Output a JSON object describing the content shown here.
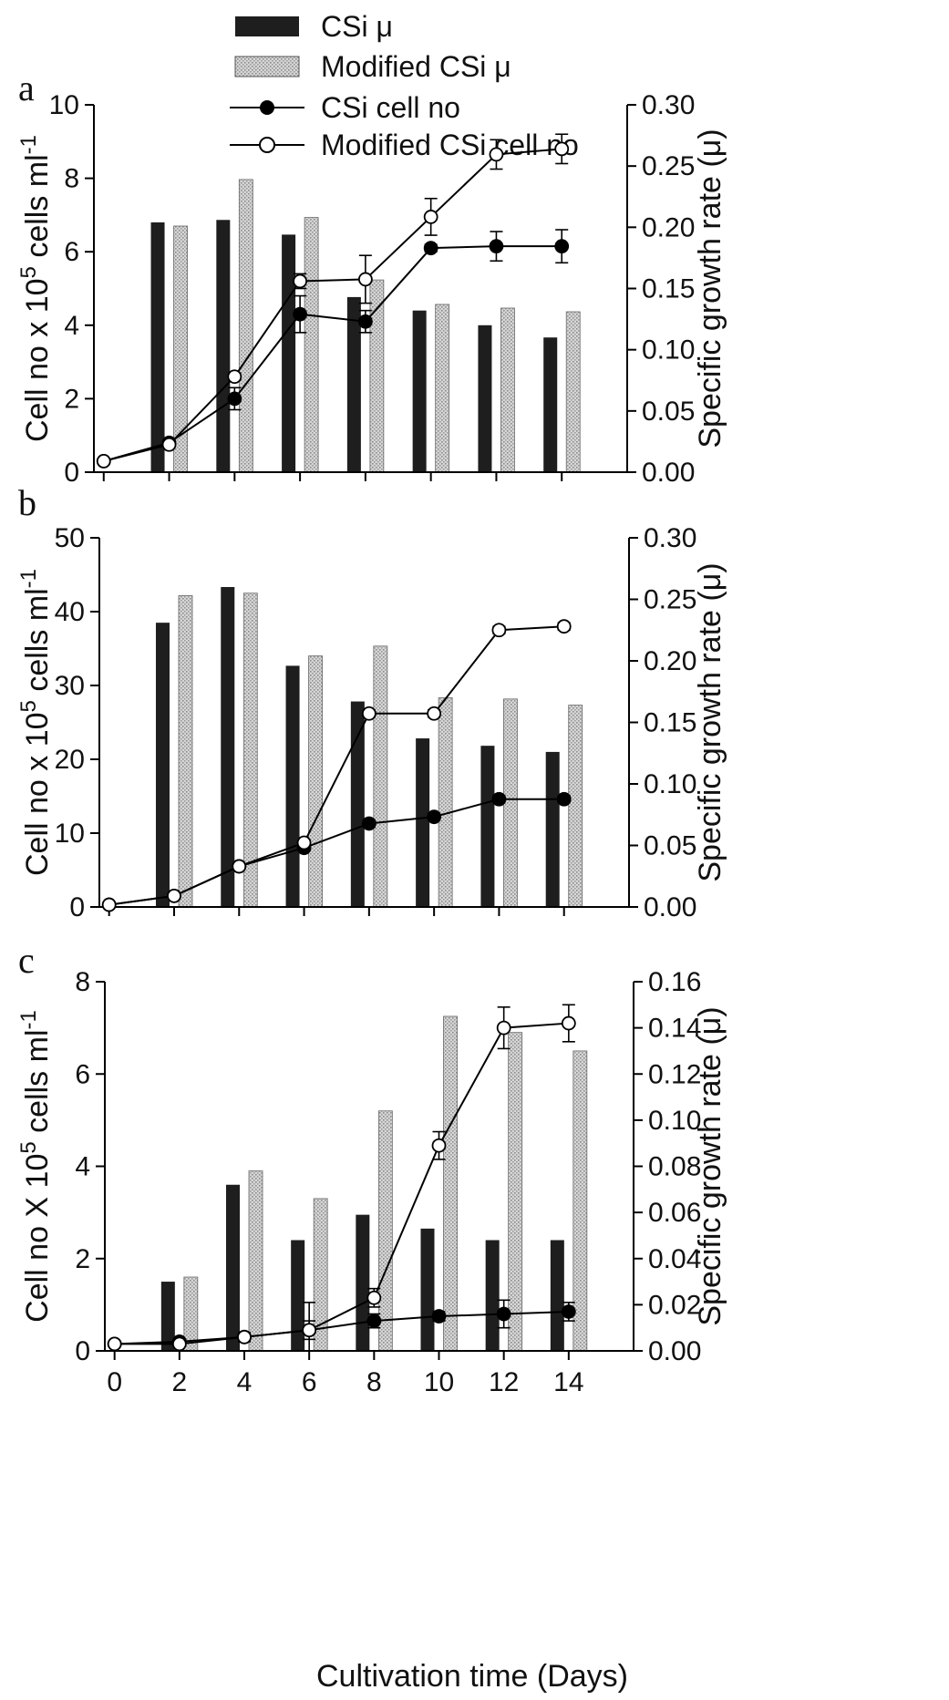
{
  "legend": {
    "items": [
      {
        "label": "CSi μ",
        "marker": "bar-dark"
      },
      {
        "label": "Modified CSi μ",
        "marker": "bar-light"
      },
      {
        "label": "CSi cell no",
        "marker": "line-filled"
      },
      {
        "label": "Modified CSi cell no",
        "marker": "line-open"
      }
    ],
    "placement": "top"
  },
  "colors": {
    "dark_bar": "#1e1e1e",
    "light_bar": "#c9c9c9",
    "line": "#000000"
  },
  "xlabel": "Cultivation time (Days)",
  "chart_data": [
    {
      "panel_label": "a",
      "type": "bar+line",
      "x_ticks": [
        0,
        2,
        4,
        6,
        8,
        10,
        12,
        14
      ],
      "xlim": [
        -0.3,
        16
      ],
      "ylabel_left": "Cell no x 10^5 cells ml^-1",
      "ylabel_right": "Specific growth rate (μ)",
      "ylim_left": [
        0,
        10
      ],
      "yticks_left": [
        0,
        2,
        4,
        6,
        8,
        10
      ],
      "ylim_right": [
        0,
        0.3
      ],
      "yticks_right": [
        "0.00",
        "0.05",
        "0.10",
        "0.15",
        "0.20",
        "0.25",
        "0.30"
      ],
      "bar_categories": [
        2,
        4,
        6,
        8,
        10,
        12,
        14
      ],
      "bar_series": [
        {
          "name": "CSi μ",
          "values": [
            0.204,
            0.206,
            0.194,
            0.143,
            0.132,
            0.12,
            0.11
          ]
        },
        {
          "name": "Modified CSi μ",
          "values": [
            0.201,
            0.239,
            0.208,
            0.157,
            0.137,
            0.134,
            0.131
          ]
        }
      ],
      "line_series": [
        {
          "name": "CSi cell no",
          "marker": "filled",
          "x": [
            0,
            2,
            4,
            6,
            8,
            10,
            12,
            14
          ],
          "y": [
            0.3,
            0.8,
            2.0,
            4.3,
            4.1,
            6.1,
            6.15,
            6.15
          ],
          "err": [
            0.05,
            0.05,
            0.3,
            0.5,
            0.3,
            0.1,
            0.4,
            0.45
          ]
        },
        {
          "name": "Modified CSi cell no",
          "marker": "open",
          "x": [
            0,
            2,
            4,
            6,
            8,
            10,
            12,
            14
          ],
          "y": [
            0.3,
            0.75,
            2.6,
            5.2,
            5.25,
            6.95,
            8.65,
            8.8
          ],
          "err": [
            0.05,
            0.05,
            0.1,
            0.2,
            0.65,
            0.5,
            0.4,
            0.4
          ]
        }
      ]
    },
    {
      "panel_label": "b",
      "type": "bar+line",
      "x_ticks": [
        0,
        2,
        4,
        6,
        8,
        10,
        12,
        14
      ],
      "xlim": [
        -0.3,
        16
      ],
      "ylabel_left": "Cell no x 10^5 cells ml^-1",
      "ylabel_right": "Specific growth rate (μ)",
      "ylim_left": [
        0,
        50
      ],
      "yticks_left": [
        0,
        10,
        20,
        30,
        40,
        50
      ],
      "ylim_right": [
        0,
        0.3
      ],
      "yticks_right": [
        "0.00",
        "0.05",
        "0.10",
        "0.15",
        "0.20",
        "0.25",
        "0.30"
      ],
      "bar_categories": [
        2,
        4,
        6,
        8,
        10,
        12,
        14
      ],
      "bar_series": [
        {
          "name": "CSi μ",
          "values": [
            0.231,
            0.26,
            0.196,
            0.167,
            0.137,
            0.131,
            0.126
          ]
        },
        {
          "name": "Modified CSi μ",
          "values": [
            0.253,
            0.255,
            0.204,
            0.212,
            0.17,
            0.169,
            0.164
          ]
        }
      ],
      "line_series": [
        {
          "name": "CSi cell no",
          "marker": "filled",
          "x": [
            0,
            2,
            4,
            6,
            8,
            10,
            12,
            14
          ],
          "y": [
            0.3,
            1.5,
            5.5,
            8.0,
            11.3,
            12.2,
            14.6,
            14.6
          ],
          "err": [
            0.1,
            0.1,
            0.3,
            0.4,
            0.5,
            0.5,
            0.5,
            0.5
          ]
        },
        {
          "name": "Modified CSi cell no",
          "marker": "open",
          "x": [
            0,
            2,
            4,
            6,
            8,
            10,
            12,
            14
          ],
          "y": [
            0.3,
            1.5,
            5.5,
            8.7,
            26.2,
            26.2,
            37.5,
            38.0
          ],
          "err": [
            0.1,
            0.1,
            0.3,
            0.4,
            0.5,
            0.5,
            0.5,
            0.5
          ]
        }
      ]
    },
    {
      "panel_label": "c",
      "type": "bar+line",
      "x_ticks": [
        0,
        2,
        4,
        6,
        8,
        10,
        12,
        14
      ],
      "xlim": [
        -0.3,
        16
      ],
      "ylabel_left": "Cell no X 10^5 cells ml^-1",
      "ylabel_right": "Specific growth rate (μ)",
      "ylim_left": [
        0,
        8
      ],
      "yticks_left": [
        0,
        2,
        4,
        6,
        8
      ],
      "ylim_right": [
        0,
        0.16
      ],
      "yticks_right": [
        "0.00",
        "0.02",
        "0.04",
        "0.06",
        "0.08",
        "0.10",
        "0.12",
        "0.14",
        "0.16"
      ],
      "bar_categories": [
        2,
        4,
        6,
        8,
        10,
        12,
        14
      ],
      "bar_series": [
        {
          "name": "CSi μ",
          "values": [
            0.03,
            0.072,
            0.048,
            0.059,
            0.053,
            0.048,
            0.048
          ]
        },
        {
          "name": "Modified CSi μ",
          "values": [
            0.032,
            0.078,
            0.066,
            0.104,
            0.145,
            0.138,
            0.13
          ]
        }
      ],
      "line_series": [
        {
          "name": "CSi cell no",
          "marker": "filled",
          "x": [
            0,
            2,
            4,
            6,
            8,
            10,
            12,
            14
          ],
          "y": [
            0.15,
            0.2,
            0.3,
            0.45,
            0.65,
            0.75,
            0.8,
            0.85
          ],
          "err": [
            0.03,
            0.05,
            0.1,
            0.2,
            0.15,
            0.1,
            0.3,
            0.2
          ]
        },
        {
          "name": "Modified CSi cell no",
          "marker": "open",
          "x": [
            0,
            2,
            4,
            6,
            8,
            10,
            12,
            14
          ],
          "y": [
            0.15,
            0.15,
            0.3,
            0.45,
            1.15,
            4.45,
            7.0,
            7.1
          ],
          "err": [
            0.03,
            0.05,
            0.1,
            0.6,
            0.2,
            0.3,
            0.45,
            0.4
          ]
        }
      ]
    }
  ]
}
